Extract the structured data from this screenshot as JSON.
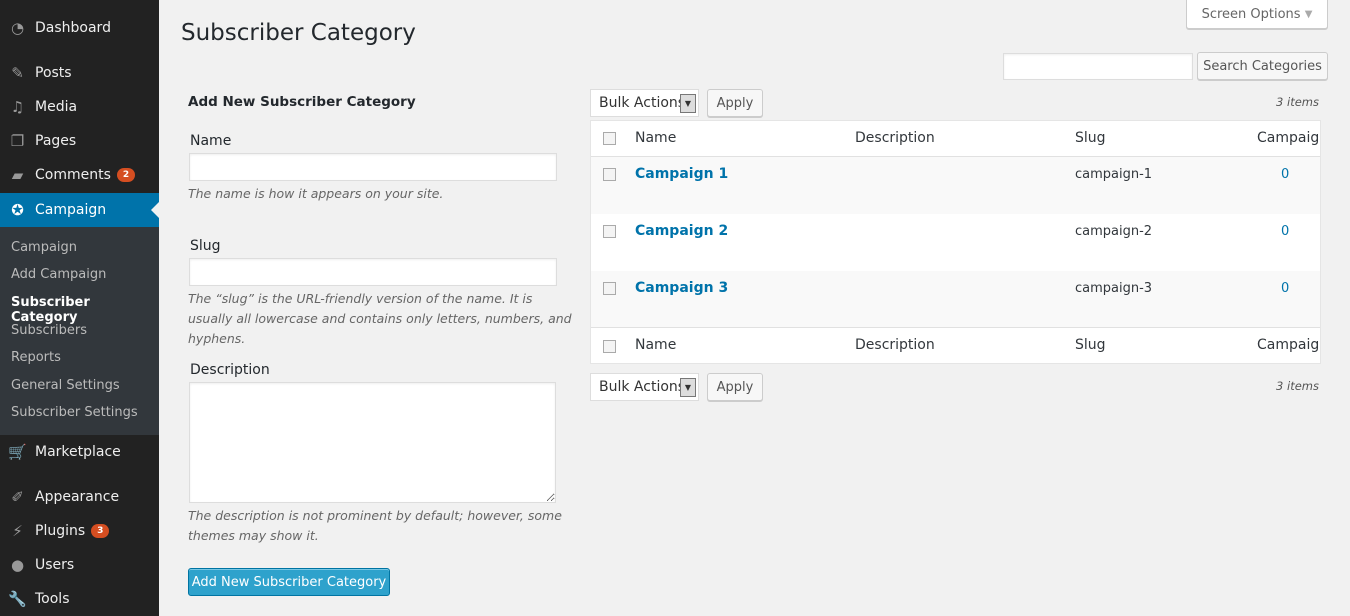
{
  "sidebar": {
    "items": [
      {
        "label": "Dashboard",
        "icon": "dashboard-icon"
      },
      {
        "label": "Posts",
        "icon": "pin-icon"
      },
      {
        "label": "Media",
        "icon": "media-icon"
      },
      {
        "label": "Pages",
        "icon": "pages-icon"
      },
      {
        "label": "Comments",
        "icon": "comment-icon",
        "badge": "2"
      },
      {
        "label": "Campaign",
        "icon": "ribbon-icon"
      },
      {
        "label": "Marketplace",
        "icon": "cart-icon"
      },
      {
        "label": "Appearance",
        "icon": "brush-icon"
      },
      {
        "label": "Plugins",
        "icon": "plug-icon",
        "badge": "3"
      },
      {
        "label": "Users",
        "icon": "user-icon"
      },
      {
        "label": "Tools",
        "icon": "wrench-icon"
      }
    ],
    "submenu": [
      "Campaign",
      "Add Campaign",
      "Subscriber Category",
      "Subscribers",
      "Reports",
      "General Settings",
      "Subscriber Settings"
    ]
  },
  "header": {
    "title": "Subscriber Category",
    "screen_options": "Screen Options",
    "search_button": "Search Categories",
    "search_value": ""
  },
  "form": {
    "heading": "Add New Subscriber Category",
    "name_label": "Name",
    "name_help": "The name is how it appears on your site.",
    "slug_label": "Slug",
    "slug_help": "The “slug” is the URL-friendly version of the name. It is usually all lowercase and contains only letters, numbers, and hyphens.",
    "desc_label": "Description",
    "desc_help": "The description is not prominent by default; however, some themes may show it.",
    "submit": "Add New Subscriber Category"
  },
  "table": {
    "bulk": "Bulk Actions",
    "apply": "Apply",
    "count": "3 items",
    "columns": [
      "Name",
      "Description",
      "Slug",
      "Campaign"
    ],
    "rows": [
      {
        "name": "Campaign 1",
        "description": "",
        "slug": "campaign-1",
        "count": "0"
      },
      {
        "name": "Campaign 2",
        "description": "",
        "slug": "campaign-2",
        "count": "0"
      },
      {
        "name": "Campaign 3",
        "description": "",
        "slug": "campaign-3",
        "count": "0"
      }
    ]
  },
  "colors": {
    "accent": "#0073aa",
    "sidebar": "#222222",
    "badge": "#d54e21"
  }
}
